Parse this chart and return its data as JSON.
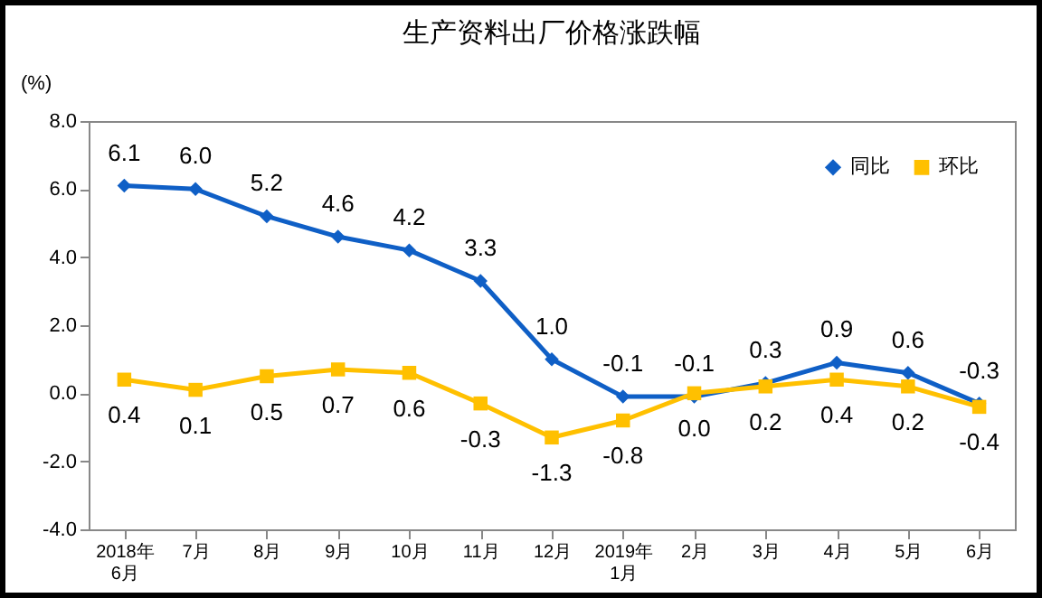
{
  "chart_data": {
    "type": "line",
    "title": "生产资料出厂价格涨跌幅",
    "ylabel": "(%)",
    "categories": [
      "2018年\n6月",
      "7月",
      "8月",
      "9月",
      "10月",
      "11月",
      "12月",
      "2019年\n1月",
      "2月",
      "3月",
      "4月",
      "5月",
      "6月"
    ],
    "series": [
      {
        "name": "同比",
        "color": "#0f5fc6",
        "marker": "diamond",
        "values": [
          6.1,
          6.0,
          5.2,
          4.6,
          4.2,
          3.3,
          1.0,
          -0.1,
          -0.1,
          0.3,
          0.9,
          0.6,
          -0.3
        ],
        "value_labels": [
          "6.1",
          "6.0",
          "5.2",
          "4.6",
          "4.2",
          "3.3",
          "1.0",
          "-0.1",
          "-0.1",
          "0.3",
          "0.9",
          "0.6",
          "-0.3"
        ]
      },
      {
        "name": "环比",
        "color": "#ffc000",
        "marker": "square",
        "values": [
          0.4,
          0.1,
          0.5,
          0.7,
          0.6,
          -0.3,
          -1.3,
          -0.8,
          0.0,
          0.2,
          0.4,
          0.2,
          -0.4
        ],
        "value_labels": [
          "0.4",
          "0.1",
          "0.5",
          "0.7",
          "0.6",
          "-0.3",
          "-1.3",
          "-0.8",
          "0.0",
          "0.2",
          "0.4",
          "0.2",
          "-0.4"
        ]
      }
    ],
    "ylim": [
      -4,
      8
    ],
    "yticks": [
      {
        "value": -4,
        "label": "-4.0"
      },
      {
        "value": -2,
        "label": "-2.0"
      },
      {
        "value": 0,
        "label": "0.0"
      },
      {
        "value": 2,
        "label": "2.0"
      },
      {
        "value": 4,
        "label": "4.0"
      },
      {
        "value": 6,
        "label": "6.0"
      },
      {
        "value": 8,
        "label": "8.0"
      }
    ],
    "legend": "top right",
    "grid": false,
    "line_style": "solid"
  }
}
